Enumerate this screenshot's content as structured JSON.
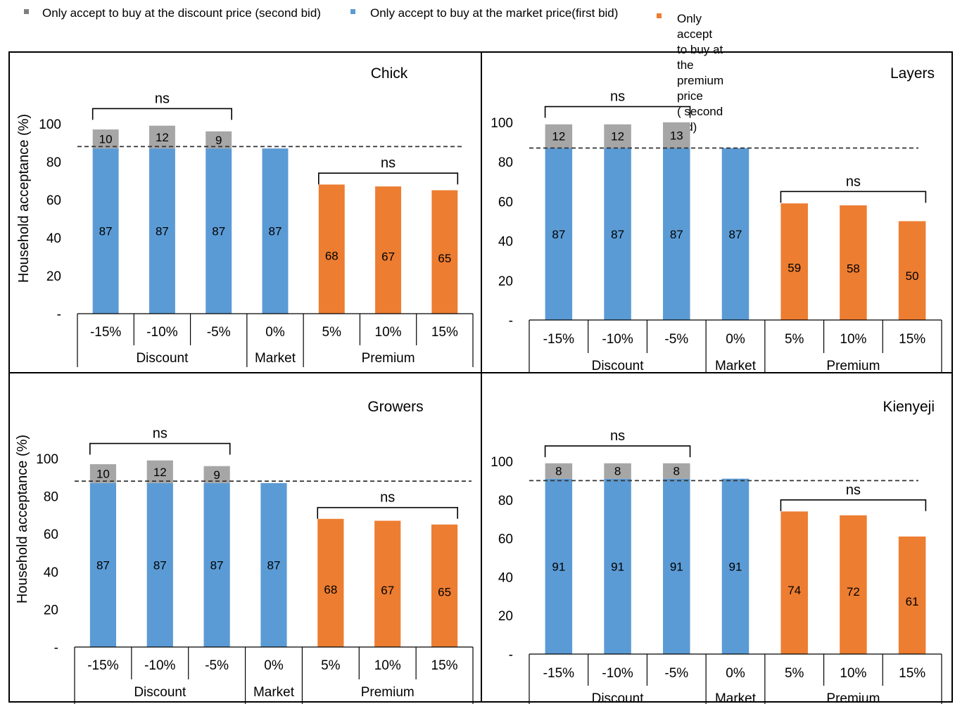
{
  "legend": {
    "items": [
      {
        "label": "Only accept to buy at the discount price (second bid)",
        "color": "#7f7f7f"
      },
      {
        "label": "Only accept to buy at the market price(first bid)",
        "color": "#5b9bd5"
      },
      {
        "label": "Only accept to buy at the premium price\n( second bid)",
        "color": "#ed7d31"
      }
    ]
  },
  "colors": {
    "discount": "#a6a6a6",
    "market": "#5b9bd5",
    "premium": "#ed7d31"
  },
  "chart_data": [
    {
      "type": "bar",
      "title": "Chick",
      "ylabel": "Household acceptance (%)",
      "ylim": [
        0,
        100
      ],
      "yticks": [
        "-",
        "20",
        "40",
        "60",
        "80",
        "100"
      ],
      "categories": [
        "-15%",
        "-10%",
        "-5%",
        "0%",
        "5%",
        "10%",
        "15%"
      ],
      "groups": [
        {
          "label": "Discount",
          "span": 3
        },
        {
          "label": "Market",
          "span": 1
        },
        {
          "label": "Premium",
          "span": 3
        }
      ],
      "series": [
        {
          "name": "Only accept to buy at the market price(first bid)",
          "values": [
            87,
            87,
            87,
            87,
            null,
            null,
            null
          ]
        },
        {
          "name": "Only accept to buy at the discount price (second bid)",
          "values": [
            10,
            12,
            9,
            null,
            null,
            null,
            null
          ]
        },
        {
          "name": "Only accept to buy at the premium price ( second bid)",
          "values": [
            null,
            null,
            null,
            null,
            68,
            67,
            65
          ]
        }
      ],
      "reference_line": 88,
      "annotations": [
        {
          "text": "ns",
          "from": 0,
          "to": 2,
          "level": 108
        },
        {
          "text": "ns",
          "from": 4,
          "to": 6,
          "level": 74
        }
      ]
    },
    {
      "type": "bar",
      "title": "Layers",
      "ylabel": "",
      "ylim": [
        0,
        100
      ],
      "yticks": [
        "-",
        "20",
        "40",
        "60",
        "80",
        "100"
      ],
      "categories": [
        "-15%",
        "-10%",
        "-5%",
        "0%",
        "5%",
        "10%",
        "15%"
      ],
      "groups": [
        {
          "label": "Discount",
          "span": 3
        },
        {
          "label": "Market",
          "span": 1
        },
        {
          "label": "Premium",
          "span": 3
        }
      ],
      "series": [
        {
          "name": "Only accept to buy at the market price(first bid)",
          "values": [
            87,
            87,
            87,
            87,
            null,
            null,
            null
          ]
        },
        {
          "name": "Only accept to buy at the discount price (second bid)",
          "values": [
            12,
            12,
            13,
            null,
            null,
            null,
            null
          ]
        },
        {
          "name": "Only accept to buy at the premium price ( second bid)",
          "values": [
            null,
            null,
            null,
            null,
            59,
            58,
            50
          ]
        }
      ],
      "reference_line": 87,
      "annotations": [
        {
          "text": "ns",
          "from": 0,
          "to": 2,
          "level": 108
        },
        {
          "text": "ns",
          "from": 4,
          "to": 6,
          "level": 65
        }
      ]
    },
    {
      "type": "bar",
      "title": "Growers",
      "ylabel": "Household acceptance (%)",
      "ylim": [
        0,
        100
      ],
      "yticks": [
        "-",
        "20",
        "40",
        "60",
        "80",
        "100"
      ],
      "categories": [
        "-15%",
        "-10%",
        "-5%",
        "0%",
        "5%",
        "10%",
        "15%"
      ],
      "groups": [
        {
          "label": "Discount",
          "span": 3
        },
        {
          "label": "Market",
          "span": 1
        },
        {
          "label": "Premium",
          "span": 3
        }
      ],
      "series": [
        {
          "name": "Only accept to buy at the market price(first bid)",
          "values": [
            87,
            87,
            87,
            87,
            null,
            null,
            null
          ]
        },
        {
          "name": "Only accept to buy at the discount price (second bid)",
          "values": [
            10,
            12,
            9,
            null,
            null,
            null,
            null
          ]
        },
        {
          "name": "Only accept to buy at the premium price ( second bid)",
          "values": [
            null,
            null,
            null,
            null,
            68,
            67,
            65
          ]
        }
      ],
      "reference_line": 88,
      "annotations": [
        {
          "text": "ns",
          "from": 0,
          "to": 2,
          "level": 108
        },
        {
          "text": "ns",
          "from": 4,
          "to": 6,
          "level": 74
        }
      ]
    },
    {
      "type": "bar",
      "title": "Kienyeji",
      "ylabel": "",
      "ylim": [
        0,
        100
      ],
      "yticks": [
        "-",
        "20",
        "40",
        "60",
        "80",
        "100"
      ],
      "categories": [
        "-15%",
        "-10%",
        "-5%",
        "0%",
        "5%",
        "10%",
        "15%"
      ],
      "groups": [
        {
          "label": "Discount",
          "span": 3
        },
        {
          "label": "Market",
          "span": 1
        },
        {
          "label": "Premium",
          "span": 3
        }
      ],
      "series": [
        {
          "name": "Only accept to buy at the market price(first bid)",
          "values": [
            91,
            91,
            91,
            91,
            null,
            null,
            null
          ]
        },
        {
          "name": "Only accept to buy at the discount price (second bid)",
          "values": [
            8,
            8,
            8,
            null,
            null,
            null,
            null
          ]
        },
        {
          "name": "Only accept to buy at the premium price ( second bid)",
          "values": [
            null,
            null,
            null,
            null,
            74,
            72,
            61
          ]
        }
      ],
      "reference_line": 90,
      "annotations": [
        {
          "text": "ns",
          "from": 0,
          "to": 2,
          "level": 108
        },
        {
          "text": "ns",
          "from": 4,
          "to": 6,
          "level": 80
        }
      ]
    }
  ]
}
